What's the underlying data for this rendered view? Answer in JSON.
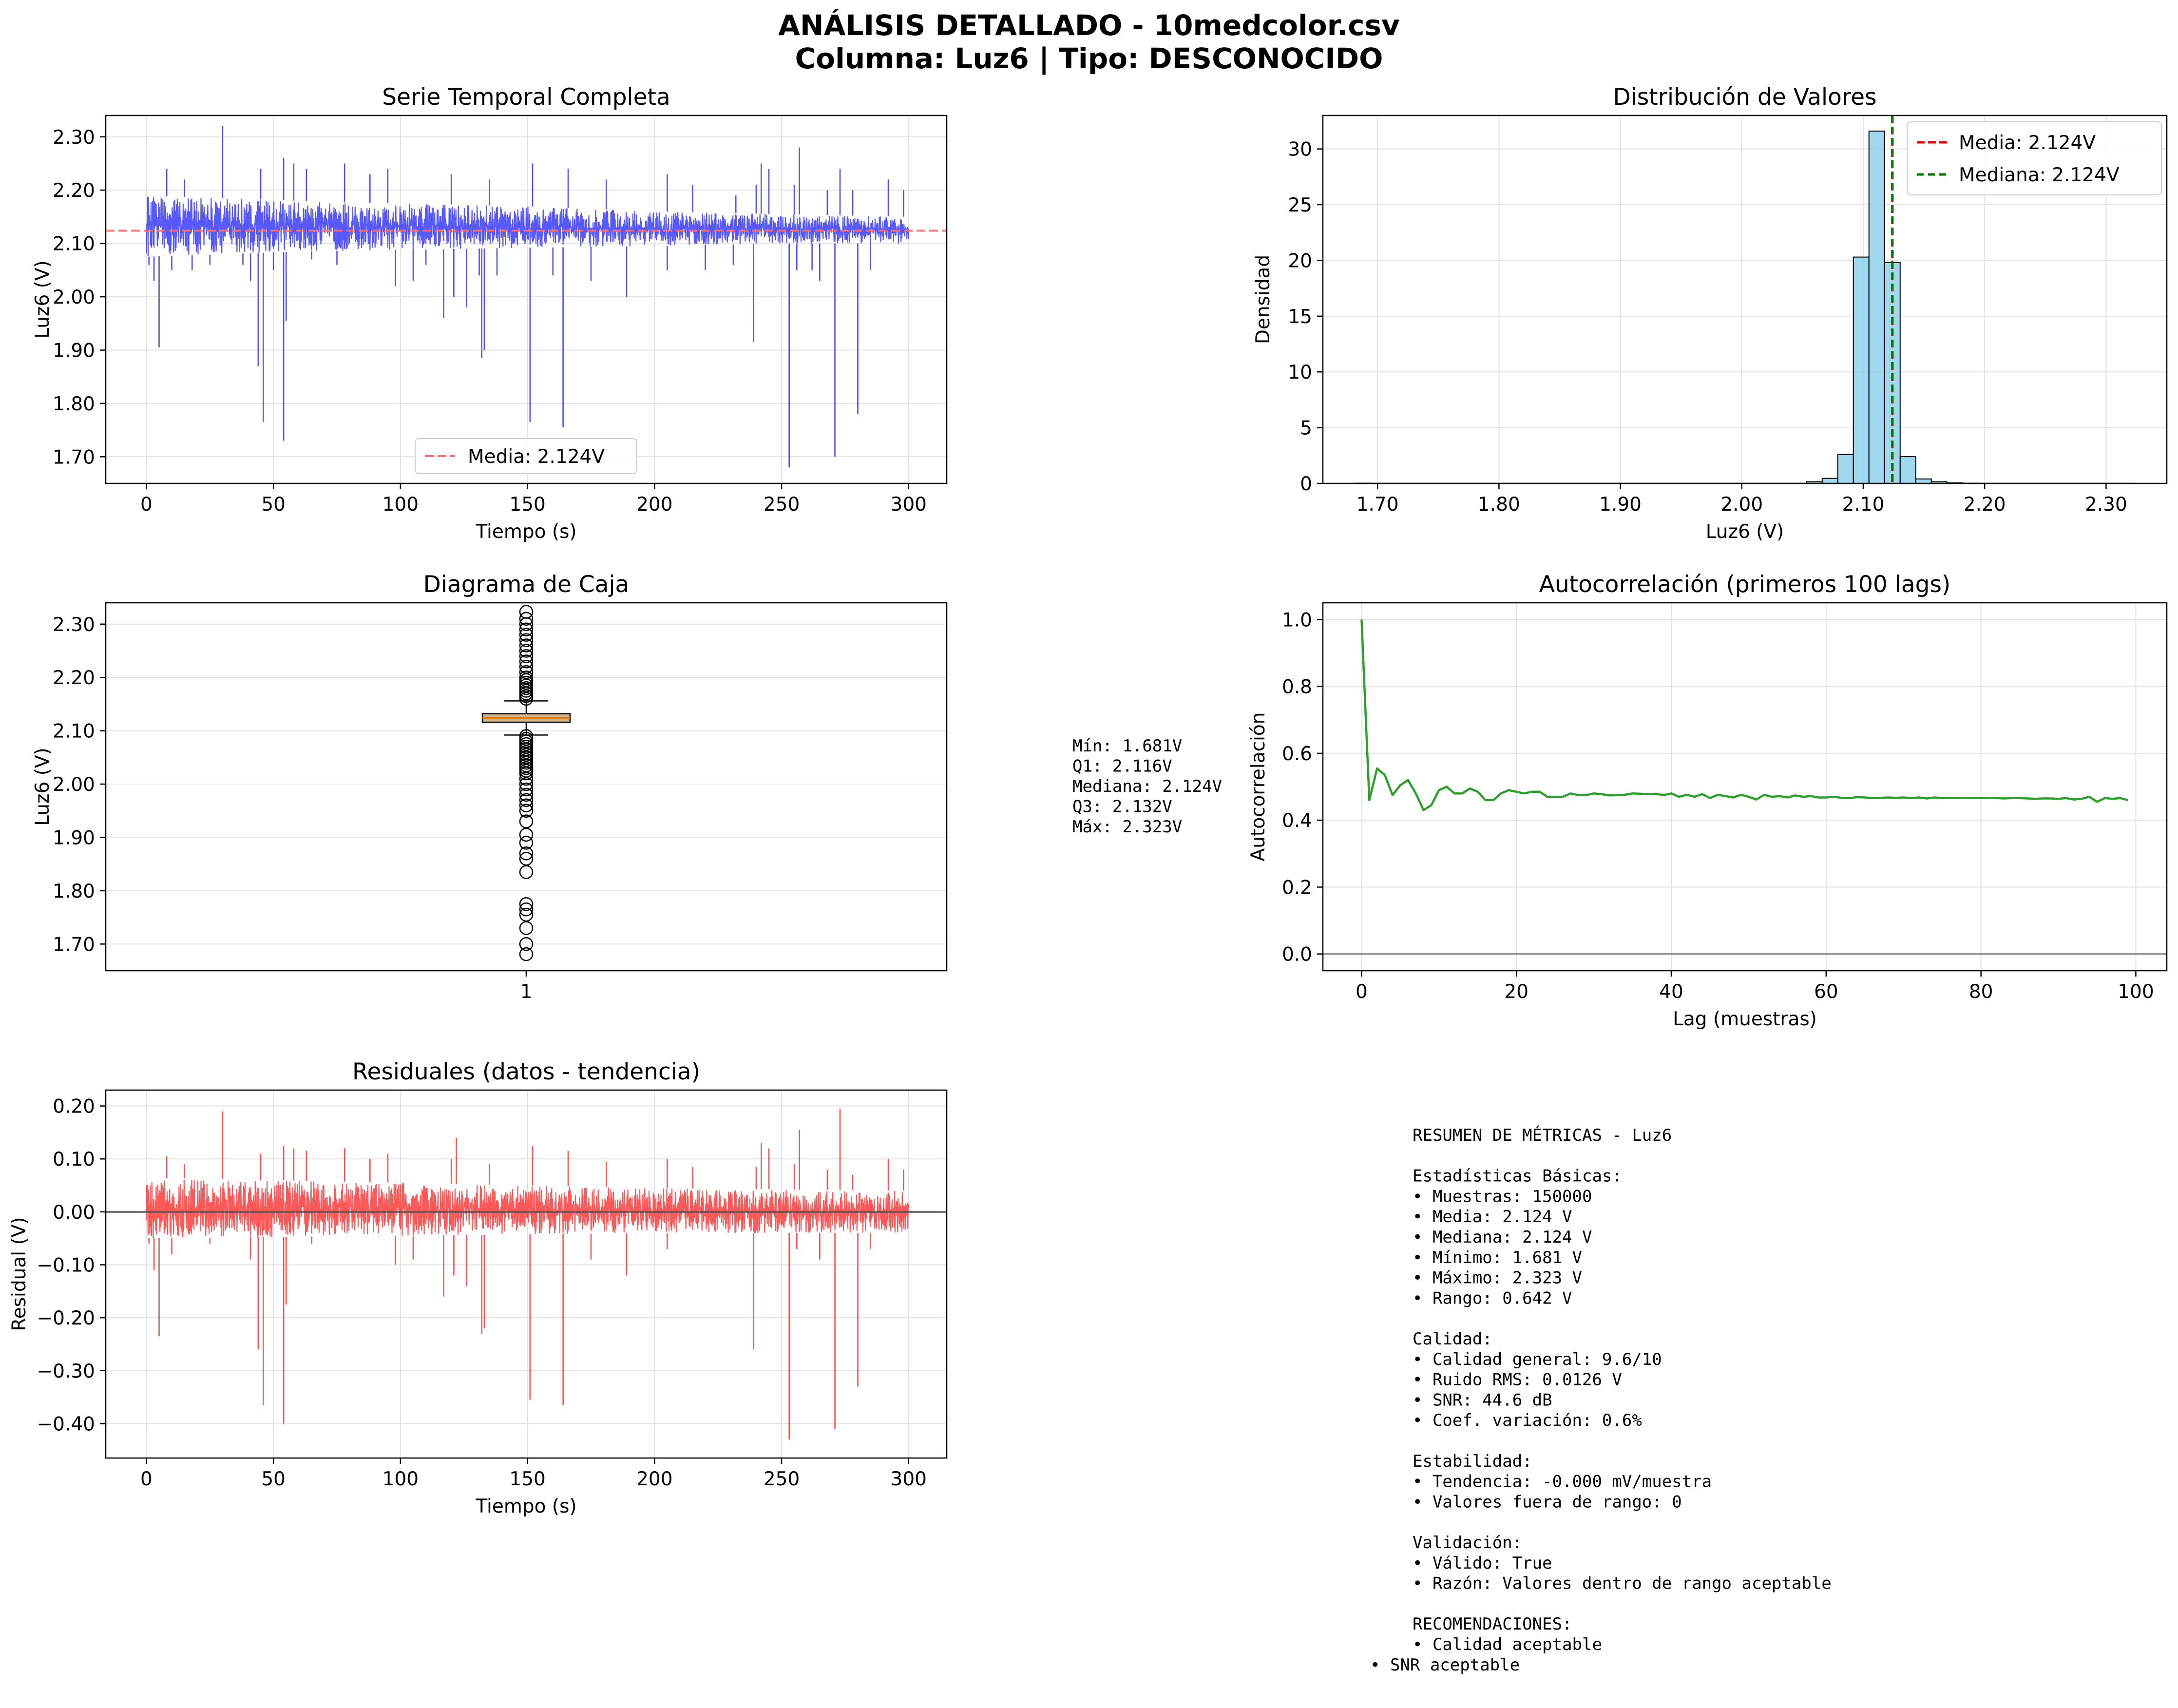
{
  "figure": {
    "title_line1": "ANÁLISIS DETALLADO - 10medcolor.csv",
    "title_line2": "Columna: Luz6 | Tipo: DESCONOCIDO"
  },
  "chart_data": [
    {
      "id": "timeseries",
      "type": "line",
      "title": "Serie Temporal Completa",
      "xlabel": "Tiempo (s)",
      "ylabel": "Luz6 (V)",
      "xlim": [
        -16,
        315
      ],
      "ylim": [
        1.65,
        2.34
      ],
      "xticks": [
        0,
        50,
        100,
        150,
        200,
        250,
        300
      ],
      "yticks": [
        1.7,
        1.8,
        1.9,
        2.0,
        2.1,
        2.2,
        2.3
      ],
      "series_color": "#3b3bff",
      "mean": 2.124,
      "mean_color": "#ff6b6b",
      "legend": "Media: 2.124V",
      "legend_position": "lower center",
      "band_low": [
        [
          0,
          2.075
        ],
        [
          30,
          2.08
        ],
        [
          60,
          2.085
        ],
        [
          100,
          2.088
        ],
        [
          150,
          2.092
        ],
        [
          200,
          2.095
        ],
        [
          250,
          2.1
        ],
        [
          300,
          2.1
        ]
      ],
      "band_high": [
        [
          0,
          2.19
        ],
        [
          30,
          2.185
        ],
        [
          60,
          2.18
        ],
        [
          100,
          2.175
        ],
        [
          150,
          2.17
        ],
        [
          200,
          2.16
        ],
        [
          250,
          2.155
        ],
        [
          300,
          2.15
        ]
      ],
      "spikes_down": [
        [
          1,
          2.06
        ],
        [
          3,
          2.03
        ],
        [
          5,
          1.905
        ],
        [
          10,
          2.05
        ],
        [
          18,
          2.05
        ],
        [
          25,
          2.06
        ],
        [
          38,
          2.06
        ],
        [
          41,
          2.03
        ],
        [
          44,
          1.87
        ],
        [
          46,
          1.765
        ],
        [
          50,
          2.05
        ],
        [
          54,
          1.73
        ],
        [
          55,
          1.955
        ],
        [
          65,
          2.07
        ],
        [
          75,
          2.06
        ],
        [
          98,
          2.02
        ],
        [
          105,
          2.03
        ],
        [
          110,
          2.06
        ],
        [
          117,
          1.96
        ],
        [
          121,
          2.0
        ],
        [
          126,
          1.98
        ],
        [
          131,
          2.04
        ],
        [
          132,
          1.885
        ],
        [
          133,
          1.9
        ],
        [
          138,
          2.04
        ],
        [
          151,
          1.765
        ],
        [
          160,
          2.04
        ],
        [
          164,
          1.755
        ],
        [
          175,
          2.03
        ],
        [
          189,
          2.0
        ],
        [
          205,
          2.05
        ],
        [
          220,
          2.05
        ],
        [
          231,
          2.06
        ],
        [
          239,
          1.915
        ],
        [
          253,
          1.68
        ],
        [
          256,
          2.05
        ],
        [
          262,
          2.05
        ],
        [
          265,
          2.03
        ],
        [
          271,
          1.7
        ],
        [
          280,
          1.78
        ],
        [
          285,
          2.05
        ]
      ],
      "spikes_up": [
        [
          8,
          2.24
        ],
        [
          15,
          2.22
        ],
        [
          30,
          2.32
        ],
        [
          45,
          2.24
        ],
        [
          54,
          2.26
        ],
        [
          58,
          2.25
        ],
        [
          63,
          2.24
        ],
        [
          78,
          2.25
        ],
        [
          88,
          2.23
        ],
        [
          95,
          2.24
        ],
        [
          120,
          2.23
        ],
        [
          135,
          2.22
        ],
        [
          152,
          2.25
        ],
        [
          166,
          2.24
        ],
        [
          181,
          2.22
        ],
        [
          205,
          2.23
        ],
        [
          215,
          2.21
        ],
        [
          232,
          2.19
        ],
        [
          240,
          2.21
        ],
        [
          242,
          2.25
        ],
        [
          245,
          2.24
        ],
        [
          255,
          2.21
        ],
        [
          257,
          2.28
        ],
        [
          268,
          2.2
        ],
        [
          273,
          2.24
        ],
        [
          278,
          2.2
        ],
        [
          292,
          2.22
        ],
        [
          298,
          2.2
        ]
      ]
    },
    {
      "id": "histogram",
      "type": "bar",
      "title": "Distribución de Valores",
      "xlabel": "Luz6 (V)",
      "ylabel": "Densidad",
      "xlim": [
        1.655,
        2.35
      ],
      "ylim": [
        0,
        33
      ],
      "xticks": [
        1.7,
        1.8,
        1.9,
        2.0,
        2.1,
        2.2,
        2.3
      ],
      "yticks": [
        0,
        5,
        10,
        15,
        20,
        25,
        30
      ],
      "bin_start": 1.681,
      "bin_width": 0.01284,
      "values": [
        0.02,
        0.01,
        0.01,
        0.01,
        0.01,
        0.01,
        0.01,
        0.01,
        0.01,
        0.01,
        0.01,
        0.01,
        0.01,
        0.01,
        0.01,
        0.01,
        0.01,
        0.01,
        0.01,
        0.01,
        0.01,
        0.01,
        0.01,
        0.01,
        0.01,
        0.01,
        0.01,
        0.01,
        0.01,
        0.15,
        0.45,
        2.6,
        20.3,
        31.6,
        19.8,
        2.4,
        0.4,
        0.15,
        0.05,
        0.02,
        0.01,
        0.01,
        0.01,
        0.01,
        0.01,
        0.01,
        0.01,
        0.01,
        0.01,
        0.01
      ],
      "bar_color": "#87ceeb",
      "series": [
        {
          "name": "Media: 2.124V",
          "value": 2.124,
          "color": "#ff0000"
        },
        {
          "name": "Mediana: 2.124V",
          "value": 2.124,
          "color": "#007a00"
        }
      ],
      "legend_position": "upper right"
    },
    {
      "id": "boxplot",
      "type": "box",
      "title": "Diagrama de Caja",
      "ylabel": "Luz6 (V)",
      "categories": [
        "1"
      ],
      "ylim": [
        1.65,
        2.34
      ],
      "yticks": [
        1.7,
        1.8,
        1.9,
        2.0,
        2.1,
        2.2,
        2.3
      ],
      "q1": 2.116,
      "median": 2.124,
      "q3": 2.132,
      "whisker_low": 2.092,
      "whisker_high": 2.156,
      "box_color": "#d2b48c",
      "outliers_high": [
        2.16,
        2.165,
        2.17,
        2.175,
        2.18,
        2.185,
        2.19,
        2.195,
        2.2,
        2.21,
        2.22,
        2.23,
        2.24,
        2.25,
        2.26,
        2.27,
        2.28,
        2.29,
        2.3,
        2.31,
        2.323
      ],
      "outliers_low": [
        2.09,
        2.085,
        2.08,
        2.075,
        2.07,
        2.065,
        2.06,
        2.055,
        2.05,
        2.045,
        2.04,
        2.035,
        2.03,
        2.025,
        2.02,
        2.01,
        2.0,
        1.99,
        1.98,
        1.97,
        1.96,
        1.95,
        1.93,
        1.905,
        1.89,
        1.87,
        1.86,
        1.835,
        1.775,
        1.765,
        1.755,
        1.73,
        1.7,
        1.681
      ]
    },
    {
      "id": "autocorrelation",
      "type": "line",
      "title": "Autocorrelación (primeros 100 lags)",
      "xlabel": "Lag (muestras)",
      "ylabel": "Autocorrelación",
      "xlim": [
        -5,
        104
      ],
      "ylim": [
        -0.05,
        1.05
      ],
      "xticks": [
        0,
        20,
        40,
        60,
        80,
        100
      ],
      "yticks": [
        0.0,
        0.2,
        0.4,
        0.6,
        0.8,
        1.0
      ],
      "x": [
        0,
        1,
        2,
        3,
        4,
        5,
        6,
        7,
        8,
        9,
        10,
        11,
        12,
        13,
        14,
        15,
        16,
        17,
        18,
        19,
        20,
        21,
        22,
        23,
        24,
        25,
        26,
        27,
        28,
        29,
        30,
        31,
        32,
        33,
        34,
        35,
        36,
        37,
        38,
        39,
        40,
        41,
        42,
        43,
        44,
        45,
        46,
        47,
        48,
        49,
        50,
        51,
        52,
        53,
        54,
        55,
        56,
        57,
        58,
        59,
        60,
        61,
        62,
        63,
        64,
        65,
        66,
        67,
        68,
        69,
        70,
        71,
        72,
        73,
        74,
        75,
        76,
        77,
        78,
        79,
        80,
        81,
        82,
        83,
        84,
        85,
        86,
        87,
        88,
        89,
        90,
        91,
        92,
        93,
        94,
        95,
        96,
        97,
        98,
        99
      ],
      "values": [
        1.0,
        0.46,
        0.555,
        0.535,
        0.475,
        0.505,
        0.52,
        0.48,
        0.43,
        0.445,
        0.49,
        0.5,
        0.48,
        0.48,
        0.495,
        0.485,
        0.46,
        0.46,
        0.48,
        0.49,
        0.485,
        0.48,
        0.485,
        0.485,
        0.47,
        0.47,
        0.47,
        0.48,
        0.475,
        0.475,
        0.48,
        0.478,
        0.474,
        0.475,
        0.476,
        0.48,
        0.479,
        0.478,
        0.479,
        0.475,
        0.48,
        0.47,
        0.476,
        0.47,
        0.478,
        0.466,
        0.476,
        0.472,
        0.468,
        0.476,
        0.47,
        0.462,
        0.476,
        0.47,
        0.472,
        0.468,
        0.474,
        0.47,
        0.472,
        0.468,
        0.468,
        0.47,
        0.467,
        0.466,
        0.469,
        0.468,
        0.466,
        0.467,
        0.468,
        0.467,
        0.468,
        0.466,
        0.468,
        0.465,
        0.468,
        0.466,
        0.466,
        0.466,
        0.467,
        0.466,
        0.466,
        0.467,
        0.466,
        0.465,
        0.466,
        0.466,
        0.465,
        0.464,
        0.465,
        0.465,
        0.464,
        0.466,
        0.462,
        0.464,
        0.47,
        0.455,
        0.466,
        0.464,
        0.466,
        0.46
      ],
      "line_color": "#2ca02c",
      "zero_line_color": "#888888"
    },
    {
      "id": "residuals",
      "type": "line",
      "title": "Residuales (datos - tendencia)",
      "xlabel": "Tiempo (s)",
      "ylabel": "Residual (V)",
      "xlim": [
        -16,
        315
      ],
      "ylim": [
        -0.465,
        0.23
      ],
      "xticks": [
        0,
        50,
        100,
        150,
        200,
        250,
        300
      ],
      "yticks": [
        -0.4,
        -0.3,
        -0.2,
        -0.1,
        0.0,
        0.1,
        0.2
      ],
      "series_color": "#ff3b3b",
      "zero_line_color": "#555555",
      "band_low": [
        [
          0,
          -0.05
        ],
        [
          100,
          -0.045
        ],
        [
          200,
          -0.04
        ],
        [
          300,
          -0.04
        ]
      ],
      "band_high": [
        [
          0,
          0.065
        ],
        [
          100,
          0.055
        ],
        [
          200,
          0.045
        ],
        [
          300,
          0.04
        ]
      ],
      "spikes_down": [
        [
          1,
          -0.06
        ],
        [
          3,
          -0.11
        ],
        [
          5,
          -0.235
        ],
        [
          10,
          -0.08
        ],
        [
          25,
          -0.06
        ],
        [
          41,
          -0.09
        ],
        [
          44,
          -0.26
        ],
        [
          46,
          -0.365
        ],
        [
          54,
          -0.4
        ],
        [
          55,
          -0.175
        ],
        [
          65,
          -0.06
        ],
        [
          98,
          -0.1
        ],
        [
          105,
          -0.09
        ],
        [
          117,
          -0.16
        ],
        [
          121,
          -0.12
        ],
        [
          126,
          -0.14
        ],
        [
          132,
          -0.23
        ],
        [
          133,
          -0.22
        ],
        [
          151,
          -0.355
        ],
        [
          164,
          -0.365
        ],
        [
          175,
          -0.09
        ],
        [
          189,
          -0.12
        ],
        [
          205,
          -0.07
        ],
        [
          239,
          -0.26
        ],
        [
          253,
          -0.43
        ],
        [
          256,
          -0.07
        ],
        [
          265,
          -0.09
        ],
        [
          271,
          -0.41
        ],
        [
          280,
          -0.33
        ],
        [
          285,
          -0.07
        ]
      ],
      "spikes_up": [
        [
          8,
          0.105
        ],
        [
          15,
          0.09
        ],
        [
          30,
          0.19
        ],
        [
          45,
          0.11
        ],
        [
          54,
          0.125
        ],
        [
          58,
          0.12
        ],
        [
          63,
          0.115
        ],
        [
          78,
          0.12
        ],
        [
          88,
          0.1
        ],
        [
          95,
          0.11
        ],
        [
          120,
          0.1
        ],
        [
          122,
          0.14
        ],
        [
          135,
          0.09
        ],
        [
          152,
          0.125
        ],
        [
          166,
          0.115
        ],
        [
          181,
          0.095
        ],
        [
          205,
          0.1
        ],
        [
          215,
          0.085
        ],
        [
          240,
          0.085
        ],
        [
          242,
          0.13
        ],
        [
          245,
          0.12
        ],
        [
          255,
          0.09
        ],
        [
          257,
          0.155
        ],
        [
          268,
          0.08
        ],
        [
          273,
          0.195
        ],
        [
          278,
          0.07
        ],
        [
          292,
          0.1
        ],
        [
          298,
          0.08
        ]
      ]
    }
  ],
  "stats_box": [
    "Mín: 1.681V",
    "Q1: 2.116V",
    "Mediana: 2.124V",
    "Q3: 2.132V",
    "Máx: 2.323V"
  ],
  "summary": [
    "RESUMEN DE MÉTRICAS - Luz6",
    "",
    "Estadísticas Básicas:",
    "• Muestras: 150000",
    "• Media: 2.124 V",
    "• Mediana: 2.124 V",
    "• Mínimo: 1.681 V",
    "• Máximo: 2.323 V",
    "• Rango: 0.642 V",
    "",
    "Calidad:",
    "• Calidad general: 9.6/10",
    "• Ruido RMS: 0.0126 V",
    "• SNR: 44.6 dB",
    "• Coef. variación: 0.6%",
    "",
    "Estabilidad:",
    "• Tendencia: -0.000 mV/muestra",
    "• Valores fuera de rango: 0",
    "",
    "Validación:",
    "• Válido: True",
    "• Razón: Valores dentro de rango aceptable",
    "",
    "RECOMENDACIONES:",
    "• Calidad aceptable",
    "• SNR aceptable"
  ]
}
